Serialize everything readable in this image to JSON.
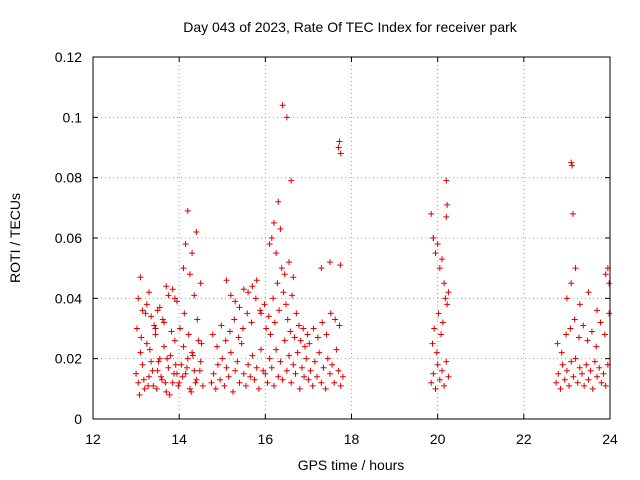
{
  "chart_data": {
    "type": "scatter",
    "title": "Day 043 of 2023, Rate Of TEC Index for receiver park",
    "xlabel": "GPS time / hours",
    "ylabel": "ROTI / TECUs",
    "xlim": [
      12,
      24
    ],
    "ylim": [
      0,
      0.12
    ],
    "xticks": [
      12,
      14,
      16,
      18,
      20,
      22,
      24
    ],
    "xtick_labels": [
      "12",
      "14",
      "16",
      "18",
      "20",
      "22",
      "24"
    ],
    "yticks": [
      0,
      0.02,
      0.04,
      0.06,
      0.08,
      0.1,
      0.12
    ],
    "ytick_labels": [
      "0",
      "0.02",
      "0.04",
      "0.06",
      "0.08",
      "0.1",
      "0.12"
    ],
    "grid": true,
    "legend": "none",
    "marker": "+",
    "marker_color": "#e00000",
    "series": [
      {
        "x": [
          13.0,
          13.05,
          13.1,
          13.15,
          13.2,
          13.25,
          13.3,
          13.35,
          13.4,
          13.45,
          13.5,
          13.55,
          13.6,
          13.65,
          13.7,
          13.75,
          13.8,
          13.85,
          13.9,
          13.95,
          13.02,
          13.08,
          13.12,
          13.18,
          13.22,
          13.28,
          13.32,
          13.38,
          13.42,
          13.48,
          13.52,
          13.58,
          13.62,
          13.68,
          13.72,
          13.78,
          13.82,
          13.88,
          13.92,
          13.98,
          13.05,
          13.15,
          13.25,
          13.35,
          13.45,
          13.55,
          13.65,
          13.75,
          13.85,
          13.95,
          13.1,
          13.3,
          13.5,
          13.7,
          13.9,
          14.0,
          14.05,
          14.1,
          14.15,
          14.2,
          14.25,
          14.3,
          14.35,
          14.4,
          14.45,
          14.5,
          14.55,
          14.02,
          14.08,
          14.12,
          14.18,
          14.22,
          14.28,
          14.32,
          14.38,
          14.42,
          14.48,
          14.52,
          14.1,
          14.2,
          14.3,
          14.4,
          14.5,
          14.15,
          14.25,
          14.35,
          14.75,
          14.8,
          14.85,
          14.9,
          14.95,
          15.0,
          15.05,
          15.1,
          15.15,
          15.2,
          15.25,
          15.3,
          15.35,
          15.4,
          15.45,
          15.5,
          15.55,
          15.6,
          15.65,
          15.7,
          15.75,
          15.8,
          15.85,
          15.9,
          15.95,
          14.78,
          14.88,
          14.98,
          15.08,
          15.18,
          15.28,
          15.38,
          15.48,
          15.58,
          15.68,
          15.78,
          15.88,
          15.98,
          15.1,
          15.3,
          15.5,
          15.7,
          15.9,
          15.2,
          15.4,
          15.6,
          15.8,
          16.0,
          16.05,
          16.1,
          16.15,
          16.2,
          16.25,
          16.3,
          16.35,
          16.4,
          16.45,
          16.5,
          16.55,
          16.6,
          16.65,
          16.7,
          16.75,
          16.8,
          16.85,
          16.9,
          16.95,
          16.02,
          16.08,
          16.12,
          16.18,
          16.22,
          16.28,
          16.32,
          16.38,
          16.42,
          16.48,
          16.52,
          16.58,
          16.62,
          16.68,
          16.72,
          16.78,
          16.82,
          16.88,
          16.92,
          16.98,
          16.1,
          16.2,
          16.3,
          16.4,
          16.5,
          16.6,
          16.15,
          16.25,
          16.35,
          16.45,
          16.55,
          16.65,
          17.0,
          17.05,
          17.1,
          17.15,
          17.2,
          17.25,
          17.3,
          17.35,
          17.4,
          17.45,
          17.5,
          17.55,
          17.6,
          17.65,
          17.7,
          17.75,
          17.8,
          17.02,
          17.12,
          17.22,
          17.32,
          17.42,
          17.52,
          17.62,
          17.72,
          17.3,
          17.5,
          17.7,
          17.75,
          17.72,
          17.74,
          19.85,
          19.9,
          19.95,
          20.0,
          20.05,
          20.1,
          20.15,
          20.2,
          20.25,
          19.88,
          19.92,
          19.98,
          20.02,
          20.08,
          20.12,
          20.18,
          20.22,
          19.9,
          20.0,
          20.1,
          20.2,
          19.95,
          20.05,
          20.15,
          20.25,
          20.2,
          20.22,
          19.85,
          19.9,
          22.75,
          22.8,
          22.85,
          22.9,
          22.95,
          23.0,
          23.05,
          23.1,
          23.15,
          23.2,
          23.25,
          23.3,
          23.35,
          23.4,
          23.45,
          23.5,
          23.55,
          23.6,
          23.65,
          23.7,
          23.75,
          23.8,
          23.85,
          23.9,
          23.95,
          22.78,
          22.88,
          22.98,
          23.08,
          23.18,
          23.28,
          23.38,
          23.48,
          23.58,
          23.68,
          23.78,
          23.88,
          23.98,
          23.0,
          23.1,
          23.2,
          23.3,
          23.5,
          23.7,
          23.9,
          23.1,
          23.12,
          23.14,
          23.95,
          23.98
        ],
        "y": [
          0.015,
          0.012,
          0.022,
          0.018,
          0.01,
          0.025,
          0.014,
          0.019,
          0.011,
          0.028,
          0.016,
          0.02,
          0.013,
          0.024,
          0.009,
          0.017,
          0.021,
          0.012,
          0.026,
          0.015,
          0.03,
          0.008,
          0.027,
          0.013,
          0.035,
          0.011,
          0.023,
          0.016,
          0.031,
          0.01,
          0.019,
          0.014,
          0.033,
          0.012,
          0.02,
          0.008,
          0.029,
          0.015,
          0.018,
          0.011,
          0.04,
          0.036,
          0.038,
          0.034,
          0.03,
          0.037,
          0.032,
          0.041,
          0.043,
          0.039,
          0.047,
          0.042,
          0.036,
          0.044,
          0.04,
          0.012,
          0.018,
          0.024,
          0.015,
          0.02,
          0.01,
          0.022,
          0.016,
          0.013,
          0.026,
          0.019,
          0.011,
          0.03,
          0.014,
          0.035,
          0.017,
          0.028,
          0.009,
          0.021,
          0.012,
          0.033,
          0.016,
          0.025,
          0.05,
          0.069,
          0.055,
          0.062,
          0.045,
          0.058,
          0.048,
          0.041,
          0.012,
          0.015,
          0.01,
          0.018,
          0.013,
          0.02,
          0.011,
          0.017,
          0.014,
          0.022,
          0.009,
          0.016,
          0.019,
          0.012,
          0.025,
          0.015,
          0.011,
          0.018,
          0.014,
          0.021,
          0.013,
          0.017,
          0.01,
          0.023,
          0.016,
          0.028,
          0.024,
          0.031,
          0.026,
          0.029,
          0.033,
          0.027,
          0.03,
          0.035,
          0.032,
          0.04,
          0.036,
          0.038,
          0.046,
          0.039,
          0.043,
          0.044,
          0.035,
          0.041,
          0.037,
          0.042,
          0.046,
          0.015,
          0.012,
          0.02,
          0.017,
          0.011,
          0.023,
          0.014,
          0.019,
          0.013,
          0.026,
          0.016,
          0.021,
          0.012,
          0.018,
          0.015,
          0.022,
          0.01,
          0.017,
          0.014,
          0.02,
          0.03,
          0.034,
          0.028,
          0.04,
          0.032,
          0.045,
          0.036,
          0.05,
          0.042,
          0.038,
          0.033,
          0.029,
          0.041,
          0.027,
          0.035,
          0.031,
          0.026,
          0.03,
          0.024,
          0.028,
          0.058,
          0.065,
          0.072,
          0.104,
          0.1,
          0.079,
          0.06,
          0.055,
          0.063,
          0.048,
          0.052,
          0.047,
          0.013,
          0.016,
          0.011,
          0.019,
          0.014,
          0.022,
          0.012,
          0.017,
          0.01,
          0.02,
          0.015,
          0.018,
          0.012,
          0.023,
          0.016,
          0.011,
          0.014,
          0.025,
          0.03,
          0.027,
          0.032,
          0.028,
          0.035,
          0.033,
          0.031,
          0.05,
          0.052,
          0.09,
          0.088,
          0.092,
          0.051,
          0.012,
          0.015,
          0.01,
          0.018,
          0.013,
          0.016,
          0.011,
          0.019,
          0.014,
          0.025,
          0.03,
          0.022,
          0.035,
          0.028,
          0.032,
          0.04,
          0.038,
          0.06,
          0.058,
          0.053,
          0.067,
          0.055,
          0.05,
          0.045,
          0.042,
          0.079,
          0.071,
          0.068,
          0.06,
          0.012,
          0.015,
          0.01,
          0.018,
          0.013,
          0.016,
          0.011,
          0.019,
          0.014,
          0.02,
          0.012,
          0.017,
          0.015,
          0.011,
          0.018,
          0.013,
          0.016,
          0.01,
          0.019,
          0.014,
          0.017,
          0.012,
          0.015,
          0.011,
          0.018,
          0.025,
          0.022,
          0.028,
          0.03,
          0.033,
          0.027,
          0.031,
          0.026,
          0.029,
          0.024,
          0.032,
          0.028,
          0.035,
          0.04,
          0.045,
          0.05,
          0.038,
          0.042,
          0.036,
          0.048,
          0.085,
          0.084,
          0.068,
          0.05,
          0.045
        ]
      }
    ]
  }
}
